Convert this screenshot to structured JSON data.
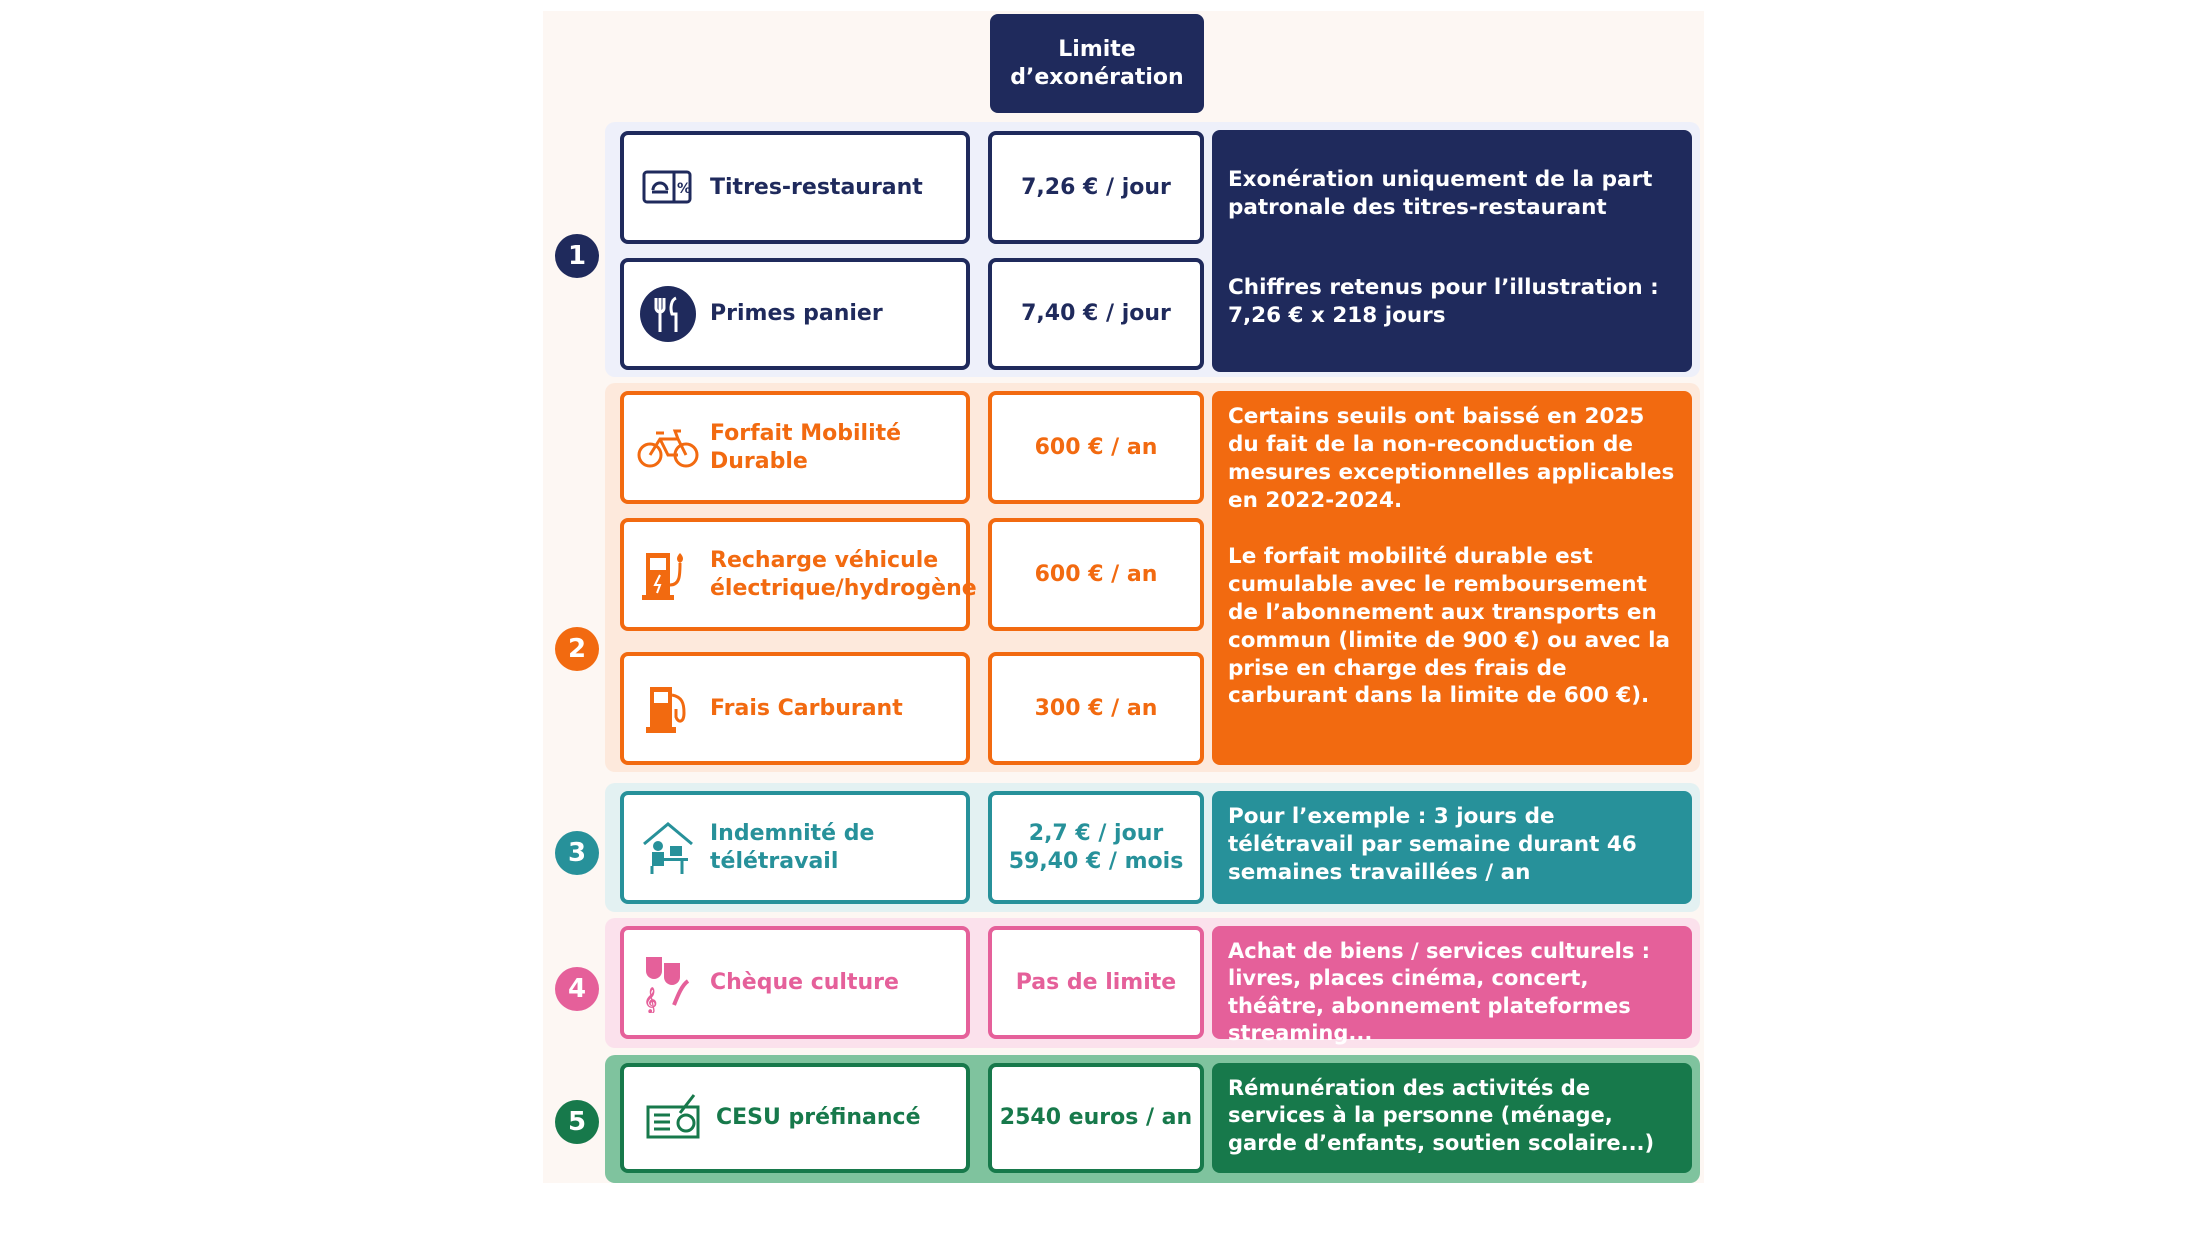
{
  "header": {
    "title": "Limite d’exonération"
  },
  "colors": {
    "navy": "#1f2a5c",
    "orange": "#f26a10",
    "teal": "#27919a",
    "pink": "#e5609a",
    "green": "#17794b"
  },
  "groups": [
    {
      "number": "1",
      "rows": [
        {
          "label": "Titres-restaurant",
          "limit": "7,26 € / jour",
          "icon": "meal-voucher-icon"
        },
        {
          "label": "Primes panier",
          "limit": "7,40 € / jour",
          "icon": "fork-knife-icon"
        }
      ],
      "description": [
        "Exonération uniquement de la part patronale des titres-restaurant",
        "Chiffres retenus pour l’illustration : 7,26 € x 218 jours"
      ]
    },
    {
      "number": "2",
      "rows": [
        {
          "label": "Forfait  Mobilité Durable",
          "limit": "600 € / an",
          "icon": "bicycle-icon"
        },
        {
          "label": "Recharge véhicule électrique/hydrogène",
          "limit": "600 € / an",
          "icon": "charging-station-icon"
        },
        {
          "label": "Frais Carburant",
          "limit": "300 € / an",
          "icon": "fuel-pump-icon"
        }
      ],
      "description": [
        "Certains seuils ont baissé en 2025 du fait de la non-reconduction de mesures exceptionnelles applicables en 2022-2024.",
        "Le forfait mobilité durable est cumulable avec le remboursement de l’abonnement aux transports en commun (limite de 900 €) ou avec la prise en charge des frais de carburant dans la limite de 600 €)."
      ]
    },
    {
      "number": "3",
      "rows": [
        {
          "label": "Indemnité de télétravail",
          "limit": "2,7 € / jour",
          "limit2": "59,40 € / mois",
          "icon": "home-office-icon"
        }
      ],
      "description": [
        "Pour l’exemple : 3 jours de télétravail par semaine durant 46 semaines travaillées / an"
      ]
    },
    {
      "number": "4",
      "rows": [
        {
          "label": "Chèque culture",
          "limit": "Pas de limite",
          "icon": "theater-masks-icon"
        }
      ],
      "description": [
        "Achat de biens / services culturels : livres, places cinéma, concert, théâtre, abonnement plateformes streaming..."
      ]
    },
    {
      "number": "5",
      "rows": [
        {
          "label": "CESU préfinancé",
          "limit": "2540 euros / an",
          "icon": "cheque-icon"
        }
      ],
      "description": [
        "Rémunération des activités de services à la personne (ménage, garde d’enfants, soutien scolaire...)"
      ]
    }
  ]
}
